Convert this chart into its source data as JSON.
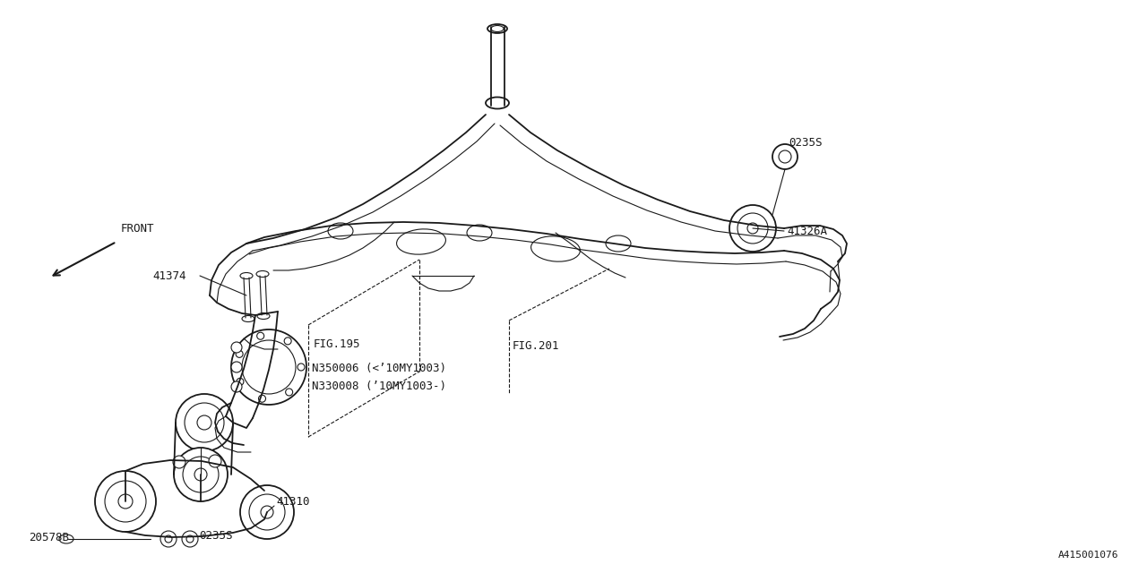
{
  "bg_color": "#ffffff",
  "line_color": "#1a1a1a",
  "diagram_id": "A415001076",
  "labels": {
    "front": "←FRONT",
    "fig195": "FIG.195",
    "fig201": "FIG.201",
    "part_41374": "41374",
    "part_41326A": "41326A",
    "part_0235S_top": "0235S",
    "part_0235S_bot": "0235S",
    "part_20578B": "20578B",
    "part_41310": "41310",
    "part_N350006": "N350006 (<’10MY1003)",
    "part_N330008": "N330008 (’10MY1003-)"
  }
}
